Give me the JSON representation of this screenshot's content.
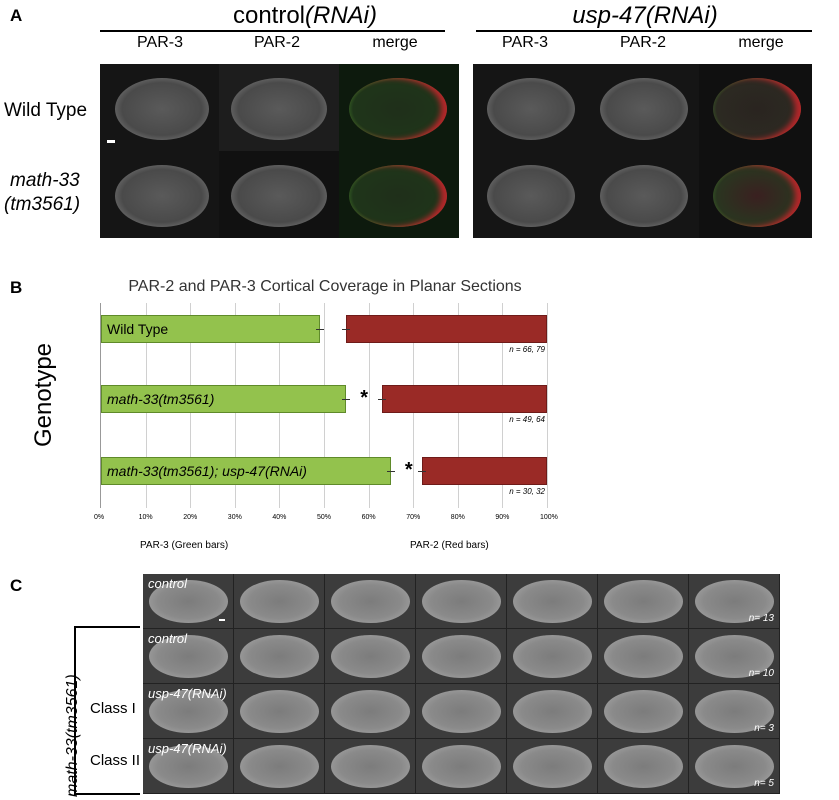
{
  "panelA": {
    "letter": "A",
    "control_header": "control",
    "control_header_italic": "(RNAi)",
    "usp_header": "usp-47(RNAi)",
    "columns": [
      "PAR-3",
      "PAR-2",
      "merge",
      "PAR-3",
      "PAR-2",
      "merge"
    ],
    "rows": [
      {
        "label": "Wild Type"
      },
      {
        "label": "math-33",
        "label2": "(tm3561)"
      }
    ]
  },
  "panelB": {
    "letter": "B",
    "chart_data": {
      "type": "bar",
      "title": "PAR-2 and PAR-3 Cortical Coverage in Planar Sections",
      "ylabel": "Genotype",
      "x_ticks": [
        "0%",
        "10%",
        "20%",
        "30%",
        "40%",
        "50%",
        "60%",
        "70%",
        "80%",
        "90%",
        "100%"
      ],
      "xlim": [
        0,
        100
      ],
      "categories": [
        "Wild Type",
        "math-33(tm3561)",
        "math-33(tm3561); usp-47(RNAi)"
      ],
      "series": [
        {
          "name": "PAR-3 (Green bars)",
          "values": [
            49,
            55,
            65
          ],
          "color": "#93c24d"
        },
        {
          "name": "PAR-2 (Red bars)",
          "values": [
            45,
            37,
            28
          ],
          "color": "#9a2a26"
        }
      ],
      "n_labels": [
        "n = 66, 79",
        "n = 49, 64",
        "n = 30, 32"
      ],
      "significance": [
        "",
        "*",
        "*"
      ],
      "xlabel_left": "PAR-3 (Green bars)",
      "xlabel_right": "PAR-2 (Red bars)"
    }
  },
  "panelC": {
    "letter": "C",
    "side_label": "math-33(tm3561)",
    "rows": [
      {
        "label": "control",
        "n": "n= 13",
        "class": ""
      },
      {
        "label": "control",
        "n": "n= 10",
        "class": ""
      },
      {
        "label": "usp-47(RNAi)",
        "n": "n= 3",
        "class": "Class I"
      },
      {
        "label": "usp-47(RNAi)",
        "n": "n= 5",
        "class": "Class II"
      }
    ]
  }
}
